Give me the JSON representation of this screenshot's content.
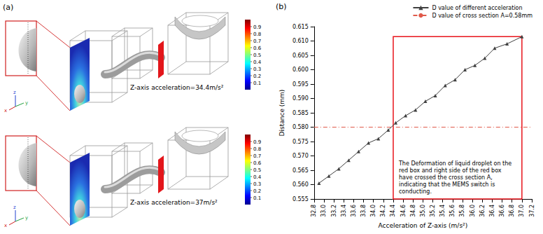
{
  "panel_a": {
    "label": "(a)",
    "views": [
      {
        "caption": "Z-axis acceleration=34.4m/s²"
      },
      {
        "caption": "Z-axis acceleration=37m/s²"
      }
    ],
    "colorbar": {
      "range": [
        0,
        1
      ],
      "ticks": [
        0.1,
        0.2,
        0.3,
        0.4,
        0.5,
        0.6,
        0.7,
        0.8,
        0.9
      ]
    },
    "axis_letters": [
      "z",
      "y",
      "x"
    ]
  },
  "chart_data": {
    "type": "line",
    "label": "(b)",
    "xlabel": "Acceleration of Z-axis (m/s²)",
    "ylabel": "Distance (mm)",
    "x": [
      32.9,
      33.1,
      33.3,
      33.5,
      33.7,
      33.9,
      34.1,
      34.3,
      34.45,
      34.65,
      34.85,
      35.05,
      35.25,
      35.45,
      35.65,
      35.85,
      36.05,
      36.25,
      36.45,
      36.7,
      37.0
    ],
    "series": [
      {
        "name": "D value of different acceleration",
        "color": "#404040",
        "marker": "triangle",
        "line_style": "solid",
        "values": [
          0.5605,
          0.563,
          0.5655,
          0.5685,
          0.5715,
          0.5745,
          0.576,
          0.579,
          0.5815,
          0.584,
          0.586,
          0.589,
          0.591,
          0.5945,
          0.5965,
          0.6,
          0.6015,
          0.604,
          0.6075,
          0.609,
          0.6115
        ]
      }
    ],
    "reference_line": {
      "name": "D value of cross section A=0.58mm",
      "value": 0.58,
      "color": "#e05a4a",
      "line_style": "dashdot"
    },
    "annotation": {
      "text": "The Deformation of liquid droplet on the red box and right side of the red box have crossed the cross section A, indicating that the MEMS switch is conducting.",
      "xlim": [
        34.4,
        37.0
      ],
      "ylim": [
        0.555,
        0.6115
      ],
      "color": "#e8141b"
    },
    "xlim": [
      32.8,
      37.2
    ],
    "xticks": [
      32.8,
      {
        "value": 33,
        "label": "33.0"
      },
      33.2,
      33.4,
      33.6,
      33.8,
      {
        "value": 34,
        "label": "34.0"
      },
      34.2,
      34.4,
      34.6,
      34.8,
      {
        "value": 35,
        "label": "35.0"
      },
      35.2,
      35.4,
      35.6,
      35.8,
      {
        "value": 36,
        "label": "36.0"
      },
      36.2,
      36.4,
      36.6,
      36.8,
      {
        "value": 37,
        "label": "37.0"
      },
      37.2
    ],
    "ylim": [
      0.555,
      0.615
    ],
    "yticks": [
      0.555,
      {
        "value": 0.56,
        "label": "0.560"
      },
      0.565,
      {
        "value": 0.57,
        "label": "0.570"
      },
      0.575,
      {
        "value": 0.58,
        "label": "0.580"
      },
      0.585,
      {
        "value": 0.59,
        "label": "0.590"
      },
      0.595,
      {
        "value": 0.6,
        "label": "0.600"
      },
      0.605,
      {
        "value": 0.61,
        "label": "0.610"
      },
      0.615
    ],
    "grid": false,
    "legend": "top-right"
  }
}
